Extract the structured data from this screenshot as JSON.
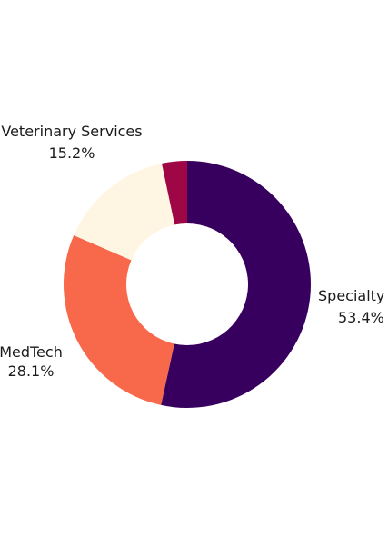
{
  "chart_data": {
    "type": "pie",
    "subtype": "donut",
    "title": "",
    "slices": [
      {
        "name": "Specialty",
        "pct_label": "53.4%",
        "value": 53.4,
        "color": "#37005f"
      },
      {
        "name": "MedTech",
        "pct_label": "28.1%",
        "value": 28.1,
        "color": "#f8684a"
      },
      {
        "name": "Veterinary Services",
        "pct_label": "15.2%",
        "value": 15.2,
        "color": "#fff5e3"
      },
      {
        "name": "",
        "pct_label": "",
        "value": 3.3,
        "color": "#9f0645"
      }
    ],
    "legend": "none",
    "clockwise_from": "top"
  }
}
